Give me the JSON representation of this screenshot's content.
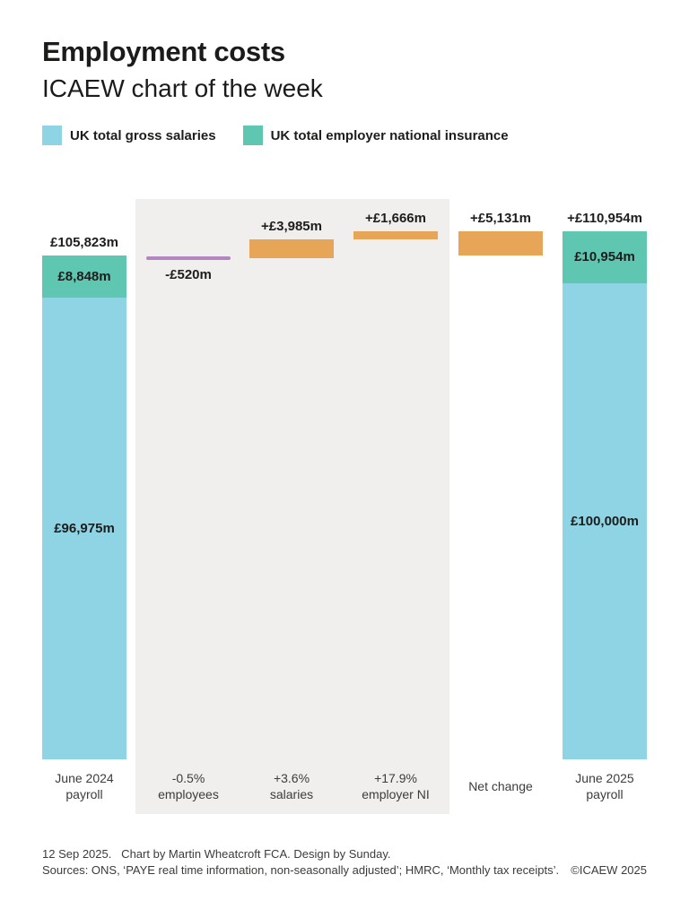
{
  "header": {
    "title": "Employment costs",
    "subtitle": "ICAEW chart of the week"
  },
  "legend": {
    "items": [
      {
        "label": "UK total gross salaries",
        "color": "#8fd4e5"
      },
      {
        "label": "UK total employer national insurance",
        "color": "#5ec6b1"
      }
    ]
  },
  "chart_data": {
    "type": "bar",
    "subtype": "waterfall",
    "unit": "£m",
    "categories": [
      "June 2024 payroll",
      "-0.5% employees",
      "+3.6% salaries",
      "+17.9% employer NI",
      "Net change",
      "June 2025 payroll"
    ],
    "series": [
      {
        "name": "UK total gross salaries",
        "color": "#8fd4e5",
        "values": [
          96975,
          null,
          null,
          null,
          null,
          100000
        ]
      },
      {
        "name": "UK total employer national insurance",
        "color": "#5ec6b1",
        "values": [
          8848,
          null,
          null,
          null,
          null,
          10954
        ]
      },
      {
        "name": "Changes",
        "color": "#e7a557",
        "values": [
          null,
          -520,
          3985,
          1666,
          5131,
          null
        ]
      }
    ],
    "totals": [
      105823,
      null,
      null,
      null,
      null,
      110954
    ],
    "colors": {
      "gross_salaries": "#8fd4e5",
      "employer_ni": "#5ec6b1",
      "increase_bar": "#e7a557",
      "decrease_line": "#b287c0",
      "highlight_panel": "#f0efee"
    },
    "legend_position": "top-left",
    "grid": false,
    "columns": [
      {
        "kind": "total",
        "axis_label": "June 2024\npayroll",
        "total_label": "£105,823m",
        "gross": 96975,
        "ni": 8848,
        "gross_label": "£96,975m",
        "ni_label": "£8,848m"
      },
      {
        "kind": "line",
        "axis_label": "-0.5%\nemployees",
        "value": -520,
        "start_level": 105823,
        "end_level": 105303,
        "value_label": "-£520m"
      },
      {
        "kind": "delta",
        "axis_label": "+3.6%\nsalaries",
        "value": 3985,
        "start_level": 105303,
        "end_level": 109288,
        "value_label": "+£3,985m"
      },
      {
        "kind": "delta",
        "axis_label": "+17.9%\nemployer NI",
        "value": 1666,
        "start_level": 109288,
        "end_level": 110954,
        "value_label": "+£1,666m"
      },
      {
        "kind": "delta",
        "axis_label": "Net change",
        "value": 5131,
        "start_level": 105823,
        "end_level": 110954,
        "value_label": "+£5,131m"
      },
      {
        "kind": "total",
        "axis_label": "June 2025\npayroll",
        "total_label": "+£110,954m",
        "gross": 100000,
        "ni": 10954,
        "gross_label": "£100,000m",
        "ni_label": "£10,954m"
      }
    ]
  },
  "footer": {
    "date_and_credit": "12 Sep 2025.   Chart by Martin Wheatcroft FCA. Design by Sunday.",
    "sources": "Sources: ONS, ‘PAYE real time information, non-seasonally adjusted’; HMRC, ‘Monthly tax receipts’.",
    "copyright": "©ICAEW 2025"
  }
}
